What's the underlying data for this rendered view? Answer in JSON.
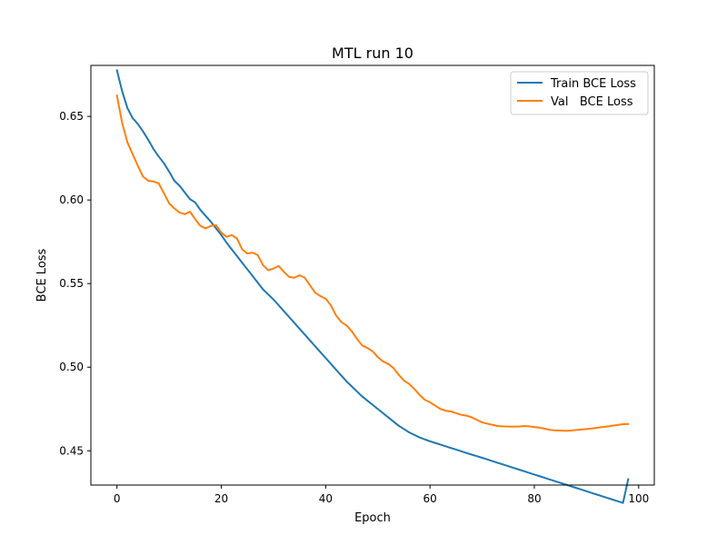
{
  "chart_data": {
    "type": "line",
    "title": "MTL run 10",
    "xlabel": "Epoch",
    "ylabel": "BCE Loss",
    "xlim": [
      -5,
      103
    ],
    "ylim": [
      0.4295,
      0.6805
    ],
    "xticks": [
      0,
      20,
      40,
      60,
      80,
      100
    ],
    "yticks": [
      0.45,
      0.5,
      0.55,
      0.6,
      0.65
    ],
    "xtick_labels": [
      "0",
      "20",
      "40",
      "60",
      "80",
      "100"
    ],
    "ytick_labels": [
      "0.45",
      "0.50",
      "0.55",
      "0.60",
      "0.65"
    ],
    "grid": false,
    "legend_position": "top-right",
    "x": [
      0,
      1,
      2,
      3,
      4,
      5,
      6,
      7,
      8,
      9,
      10,
      11,
      12,
      13,
      14,
      15,
      16,
      17,
      18,
      19,
      20,
      21,
      22,
      23,
      24,
      25,
      26,
      27,
      28,
      29,
      30,
      31,
      32,
      33,
      34,
      35,
      36,
      37,
      38,
      39,
      40,
      41,
      42,
      43,
      44,
      45,
      46,
      47,
      48,
      49,
      50,
      51,
      52,
      53,
      54,
      55,
      56,
      57,
      58,
      59,
      60,
      61,
      62,
      63,
      64,
      65,
      66,
      67,
      68,
      69,
      70,
      71,
      72,
      73,
      74,
      75,
      76,
      77,
      78,
      79,
      80,
      81,
      82,
      83,
      84,
      85,
      86,
      87,
      88,
      89,
      90,
      91,
      92,
      93,
      94,
      95,
      96,
      97,
      98
    ],
    "series": [
      {
        "name": "Train BCE Loss",
        "color": "#1f77b4",
        "values": [
          0.6775,
          0.665,
          0.655,
          0.649,
          0.6455,
          0.641,
          0.636,
          0.6305,
          0.626,
          0.622,
          0.617,
          0.6115,
          0.6085,
          0.6045,
          0.6005,
          0.5985,
          0.594,
          0.5905,
          0.587,
          0.583,
          0.579,
          0.5745,
          0.5705,
          0.5665,
          0.5625,
          0.5585,
          0.5545,
          0.5505,
          0.5465,
          0.5435,
          0.5405,
          0.537,
          0.5335,
          0.53,
          0.5265,
          0.523,
          0.5195,
          0.516,
          0.5125,
          0.509,
          0.5055,
          0.502,
          0.4985,
          0.495,
          0.4915,
          0.4885,
          0.4855,
          0.4825,
          0.48,
          0.4775,
          0.475,
          0.4725,
          0.47,
          0.4675,
          0.465,
          0.463,
          0.461,
          0.4595,
          0.458,
          0.4568,
          0.4557,
          0.4547,
          0.4537,
          0.4527,
          0.4517,
          0.4507,
          0.4497,
          0.4487,
          0.4477,
          0.4468,
          0.4458,
          0.4448,
          0.4438,
          0.4428,
          0.4418,
          0.4408,
          0.4398,
          0.4388,
          0.4378,
          0.4368,
          0.4358,
          0.4348,
          0.4338,
          0.4328,
          0.4318,
          0.4308,
          0.4298,
          0.4288,
          0.4278,
          0.4268,
          0.4258,
          0.4248,
          0.4238,
          0.4228,
          0.4218,
          0.4208,
          0.4198,
          0.4188,
          0.433
        ]
      },
      {
        "name": "Val   BCE Loss",
        "color": "#ff7f0e",
        "values": [
          0.6625,
          0.646,
          0.6345,
          0.6275,
          0.6205,
          0.614,
          0.6115,
          0.611,
          0.61,
          0.604,
          0.598,
          0.595,
          0.5925,
          0.5915,
          0.593,
          0.5885,
          0.5845,
          0.583,
          0.5845,
          0.585,
          0.5805,
          0.578,
          0.579,
          0.577,
          0.5705,
          0.568,
          0.5685,
          0.567,
          0.561,
          0.558,
          0.559,
          0.5605,
          0.557,
          0.554,
          0.5535,
          0.555,
          0.5535,
          0.549,
          0.5445,
          0.5425,
          0.541,
          0.537,
          0.531,
          0.527,
          0.525,
          0.5215,
          0.517,
          0.513,
          0.5115,
          0.5095,
          0.506,
          0.5035,
          0.502,
          0.4995,
          0.4955,
          0.492,
          0.49,
          0.487,
          0.4835,
          0.4805,
          0.479,
          0.477,
          0.475,
          0.474,
          0.4735,
          0.4725,
          0.4715,
          0.471,
          0.47,
          0.4685,
          0.467,
          0.4662,
          0.4655,
          0.4648,
          0.4646,
          0.4645,
          0.4645,
          0.4645,
          0.4648,
          0.4646,
          0.4642,
          0.4638,
          0.4632,
          0.4625,
          0.4622,
          0.4621,
          0.4619,
          0.4621,
          0.4624,
          0.4627,
          0.463,
          0.4633,
          0.4637,
          0.4642,
          0.4645,
          0.465,
          0.4654,
          0.4659,
          0.466
        ]
      }
    ]
  }
}
